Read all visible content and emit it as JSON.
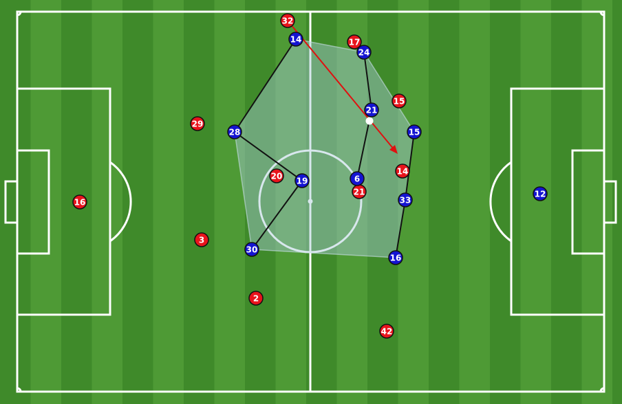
{
  "colors": {
    "grass_light": "#4e9a35",
    "grass_dark": "#3f8a2a",
    "lines": "#ffffff",
    "team_red": "#e8141c",
    "team_blue": "#1414d2",
    "shape_fill": "#a9c9d8",
    "pass_arrow": "#e01010",
    "links": "#111111"
  },
  "team_red": [
    {
      "number": "32"
    },
    {
      "number": "17"
    },
    {
      "number": "15"
    },
    {
      "number": "29"
    },
    {
      "number": "14"
    },
    {
      "number": "20"
    },
    {
      "number": "21"
    },
    {
      "number": "16"
    },
    {
      "number": "3"
    },
    {
      "number": "2"
    },
    {
      "number": "42"
    }
  ],
  "team_blue": [
    {
      "number": "14"
    },
    {
      "number": "24"
    },
    {
      "number": "21"
    },
    {
      "number": "15"
    },
    {
      "number": "28"
    },
    {
      "number": "19"
    },
    {
      "number": "6"
    },
    {
      "number": "33"
    },
    {
      "number": "30"
    },
    {
      "number": "16"
    },
    {
      "number": "12"
    }
  ]
}
